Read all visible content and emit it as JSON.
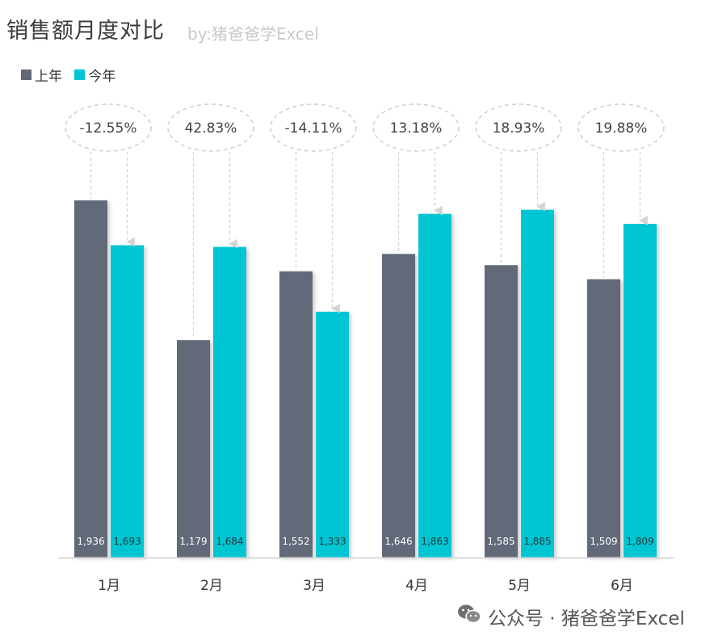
{
  "header": {
    "title": "销售额月度对比",
    "byline": "by:猪爸爸学Excel"
  },
  "watermark": {
    "text": "公众号 · 猪爸爸学Excel",
    "icon": "wechat-icon"
  },
  "colors": {
    "last_year": "#626978",
    "this_year": "#00C5D2",
    "bubble_stroke": "#cfcfcf",
    "arrow": "#d4d4d4",
    "axis": "#d9d9d9"
  },
  "chart_data": {
    "type": "bar",
    "title": "销售额月度对比",
    "categories": [
      "1月",
      "2月",
      "3月",
      "4月",
      "5月",
      "6月"
    ],
    "series": [
      {
        "name": "上年",
        "values": [
          1936,
          1179,
          1552,
          1646,
          1585,
          1509
        ],
        "labels": [
          "1,936",
          "1,179",
          "1,552",
          "1,646",
          "1,585",
          "1,509"
        ]
      },
      {
        "name": "今年",
        "values": [
          1693,
          1684,
          1333,
          1863,
          1885,
          1809
        ],
        "labels": [
          "1,693",
          "1,684",
          "1,333",
          "1,863",
          "1,885",
          "1,809"
        ]
      }
    ],
    "change_labels": [
      "-12.55%",
      "42.83%",
      "-14.11%",
      "13.18%",
      "18.93%",
      "19.88%"
    ],
    "legend": "top-left",
    "grid": false
  }
}
